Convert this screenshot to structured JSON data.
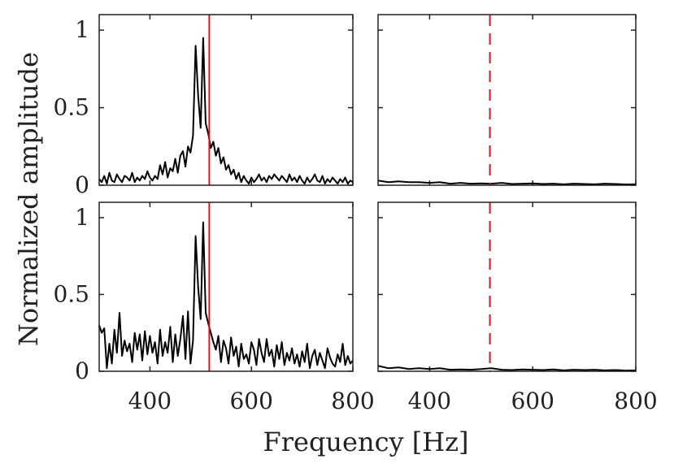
{
  "chart_data": {
    "type": "line",
    "xlabel": "Frequency [Hz]",
    "ylabel": "Normalized amplitude",
    "xlim": [
      300,
      800
    ],
    "ylim": [
      0,
      1.1
    ],
    "xticks": [
      400,
      600,
      800
    ],
    "yticks": [
      0,
      0.5,
      1
    ],
    "ytick_labels": [
      "0",
      "0.5",
      "1"
    ],
    "reference_frequency": 517,
    "line_color": "#000000",
    "reference_color": "#e8101a",
    "panels": [
      {
        "id": "top-left",
        "reference_style": "solid",
        "x": [
          300,
          305,
          310,
          315,
          320,
          325,
          330,
          335,
          340,
          345,
          350,
          355,
          360,
          365,
          370,
          375,
          380,
          385,
          390,
          395,
          400,
          405,
          410,
          415,
          420,
          425,
          430,
          435,
          440,
          445,
          450,
          455,
          460,
          465,
          470,
          475,
          480,
          485,
          490,
          495,
          500,
          505,
          510,
          515,
          520,
          525,
          530,
          535,
          540,
          545,
          550,
          555,
          560,
          565,
          570,
          575,
          580,
          585,
          590,
          595,
          600,
          605,
          610,
          615,
          620,
          625,
          630,
          635,
          640,
          645,
          650,
          655,
          660,
          665,
          670,
          675,
          680,
          685,
          690,
          695,
          700,
          705,
          710,
          715,
          720,
          725,
          730,
          735,
          740,
          745,
          750,
          755,
          760,
          765,
          770,
          775,
          780,
          785,
          790,
          795,
          800
        ],
        "y": [
          0.04,
          0.02,
          0.06,
          0.01,
          0.08,
          0.03,
          0.02,
          0.07,
          0.04,
          0.02,
          0.06,
          0.05,
          0.03,
          0.08,
          0.02,
          0.05,
          0.03,
          0.06,
          0.04,
          0.09,
          0.05,
          0.03,
          0.06,
          0.04,
          0.13,
          0.07,
          0.15,
          0.05,
          0.11,
          0.09,
          0.17,
          0.08,
          0.19,
          0.22,
          0.12,
          0.25,
          0.21,
          0.32,
          0.9,
          0.58,
          0.37,
          0.95,
          0.4,
          0.33,
          0.24,
          0.28,
          0.19,
          0.24,
          0.14,
          0.18,
          0.1,
          0.13,
          0.07,
          0.1,
          0.04,
          0.08,
          0.02,
          0.06,
          0.03,
          0.01,
          0.05,
          0.02,
          0.04,
          0.07,
          0.03,
          0.05,
          0.02,
          0.06,
          0.04,
          0.07,
          0.05,
          0.03,
          0.06,
          0.04,
          0.02,
          0.07,
          0.03,
          0.05,
          0.02,
          0.06,
          0.03,
          0.01,
          0.05,
          0.02,
          0.04,
          0.07,
          0.03,
          0.02,
          0.06,
          0.01,
          0.04,
          0.02,
          0.05,
          0.03,
          0.01,
          0.04,
          0.02,
          0.05,
          0.01,
          0.03,
          0.02
        ]
      },
      {
        "id": "top-right",
        "reference_style": "dashed",
        "x": [
          300,
          320,
          340,
          360,
          380,
          400,
          420,
          440,
          460,
          480,
          500,
          520,
          540,
          560,
          580,
          600,
          620,
          640,
          660,
          680,
          700,
          720,
          740,
          760,
          780,
          800
        ],
        "y": [
          0.03,
          0.02,
          0.025,
          0.02,
          0.02,
          0.015,
          0.02,
          0.01,
          0.015,
          0.01,
          0.012,
          0.01,
          0.015,
          0.008,
          0.01,
          0.012,
          0.008,
          0.01,
          0.006,
          0.01,
          0.008,
          0.006,
          0.01,
          0.008,
          0.005,
          0.006
        ]
      },
      {
        "id": "bottom-left",
        "reference_style": "solid",
        "x": [
          300,
          305,
          310,
          315,
          320,
          325,
          330,
          335,
          340,
          345,
          350,
          355,
          360,
          365,
          370,
          375,
          380,
          385,
          390,
          395,
          400,
          405,
          410,
          415,
          420,
          425,
          430,
          435,
          440,
          445,
          450,
          455,
          460,
          465,
          470,
          475,
          480,
          485,
          490,
          495,
          500,
          505,
          510,
          515,
          520,
          525,
          530,
          535,
          540,
          545,
          550,
          555,
          560,
          565,
          570,
          575,
          580,
          585,
          590,
          595,
          600,
          605,
          610,
          615,
          620,
          625,
          630,
          635,
          640,
          645,
          650,
          655,
          660,
          665,
          670,
          675,
          680,
          685,
          690,
          695,
          700,
          705,
          710,
          715,
          720,
          725,
          730,
          735,
          740,
          745,
          750,
          755,
          760,
          765,
          770,
          775,
          780,
          785,
          790,
          795,
          800
        ],
        "y": [
          0.3,
          0.25,
          0.28,
          0.02,
          0.18,
          0.05,
          0.27,
          0.12,
          0.38,
          0.1,
          0.2,
          0.13,
          0.18,
          0.06,
          0.25,
          0.14,
          0.24,
          0.07,
          0.26,
          0.11,
          0.23,
          0.12,
          0.19,
          0.05,
          0.27,
          0.1,
          0.19,
          0.12,
          0.29,
          0.06,
          0.24,
          0.1,
          0.21,
          0.36,
          0.08,
          0.39,
          0.05,
          0.2,
          0.88,
          0.55,
          0.34,
          0.97,
          0.38,
          0.31,
          0.25,
          0.19,
          0.14,
          0.23,
          0.06,
          0.2,
          0.15,
          0.05,
          0.22,
          0.1,
          0.16,
          0.03,
          0.18,
          0.08,
          0.11,
          0.05,
          0.19,
          0.14,
          0.04,
          0.21,
          0.12,
          0.06,
          0.21,
          0.1,
          0.14,
          0.03,
          0.17,
          0.08,
          0.19,
          0.04,
          0.12,
          0.07,
          0.15,
          0.05,
          0.11,
          0.03,
          0.13,
          0.06,
          0.18,
          0.02,
          0.1,
          0.14,
          0.04,
          0.12,
          0.07,
          0.02,
          0.15,
          0.09,
          0.05,
          0.03,
          0.11,
          0.06,
          0.18,
          0.04,
          0.1,
          0.05,
          0.07
        ]
      },
      {
        "id": "bottom-right",
        "reference_style": "dashed",
        "x": [
          300,
          320,
          340,
          360,
          380,
          400,
          420,
          440,
          460,
          480,
          500,
          520,
          540,
          560,
          580,
          600,
          620,
          640,
          660,
          680,
          700,
          720,
          740,
          760,
          780,
          800
        ],
        "y": [
          0.035,
          0.02,
          0.025,
          0.015,
          0.02,
          0.015,
          0.02,
          0.01,
          0.012,
          0.01,
          0.015,
          0.02,
          0.01,
          0.008,
          0.012,
          0.01,
          0.008,
          0.012,
          0.006,
          0.01,
          0.008,
          0.01,
          0.006,
          0.008,
          0.005,
          0.006
        ]
      }
    ]
  }
}
